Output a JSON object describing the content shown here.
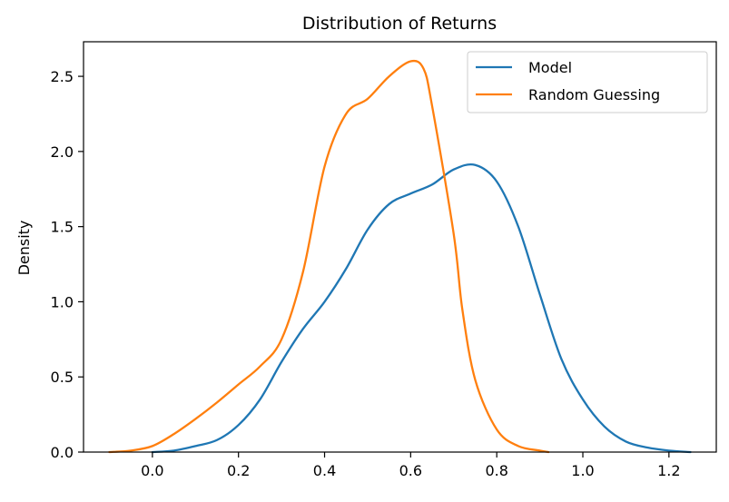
{
  "chart_data": {
    "type": "line",
    "title": "Distribution of Returns",
    "xlabel": "",
    "ylabel": "Density",
    "xlim": [
      -0.16,
      1.31
    ],
    "ylim": [
      0.0,
      2.73
    ],
    "xticks": [
      0.0,
      0.2,
      0.4,
      0.6,
      0.8,
      1.0,
      1.2
    ],
    "xtick_labels": [
      "0.0",
      "0.2",
      "0.4",
      "0.6",
      "0.8",
      "1.0",
      "1.2"
    ],
    "yticks": [
      0.0,
      0.5,
      1.0,
      1.5,
      2.0,
      2.5
    ],
    "ytick_labels": [
      "0.0",
      "0.5",
      "1.0",
      "1.5",
      "2.0",
      "2.5"
    ],
    "grid": false,
    "legend_position": "upper right",
    "series": [
      {
        "name": "Model",
        "color": "#1f77b4",
        "x": [
          0.0,
          0.05,
          0.1,
          0.15,
          0.2,
          0.25,
          0.3,
          0.35,
          0.4,
          0.45,
          0.5,
          0.55,
          0.6,
          0.65,
          0.7,
          0.75,
          0.8,
          0.85,
          0.9,
          0.95,
          1.0,
          1.05,
          1.1,
          1.15,
          1.2,
          1.25
        ],
        "y": [
          0.0,
          0.01,
          0.04,
          0.08,
          0.18,
          0.35,
          0.6,
          0.82,
          1.0,
          1.22,
          1.48,
          1.65,
          1.72,
          1.78,
          1.88,
          1.91,
          1.8,
          1.5,
          1.05,
          0.62,
          0.35,
          0.17,
          0.07,
          0.03,
          0.01,
          0.0
        ]
      },
      {
        "name": "Random Guessing",
        "color": "#ff7f0e",
        "x": [
          -0.1,
          -0.05,
          0.0,
          0.05,
          0.1,
          0.15,
          0.2,
          0.25,
          0.3,
          0.35,
          0.4,
          0.45,
          0.5,
          0.55,
          0.6,
          0.63,
          0.65,
          0.7,
          0.72,
          0.75,
          0.8,
          0.85,
          0.9,
          0.92
        ],
        "y": [
          0.0,
          0.01,
          0.04,
          0.12,
          0.22,
          0.33,
          0.45,
          0.57,
          0.75,
          1.2,
          1.9,
          2.25,
          2.35,
          2.5,
          2.6,
          2.55,
          2.3,
          1.45,
          0.95,
          0.48,
          0.15,
          0.04,
          0.01,
          0.0
        ]
      }
    ]
  }
}
